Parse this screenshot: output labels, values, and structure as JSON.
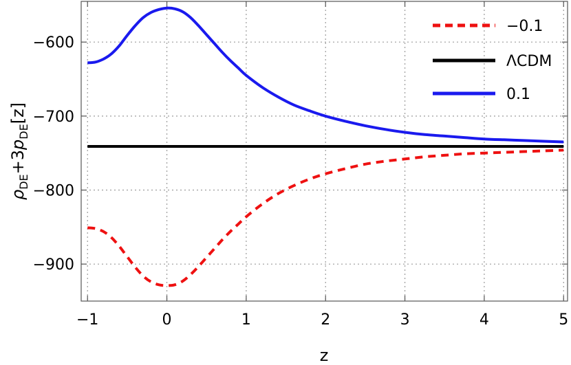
{
  "chart_data": {
    "type": "line",
    "xlabel": "z",
    "ylabel_parts": [
      "ρ",
      "DE",
      "+3",
      "p",
      "DE",
      "[z]"
    ],
    "xlim": [
      -1.08,
      5.05
    ],
    "ylim": [
      -950,
      -545
    ],
    "x_ticks": [
      -1,
      0,
      1,
      2,
      3,
      4,
      5
    ],
    "x_tick_labels": [
      "−1",
      "0",
      "1",
      "2",
      "3",
      "4",
      "5"
    ],
    "y_ticks": [
      -600,
      -700,
      -800,
      -900
    ],
    "y_tick_labels": [
      "−600",
      "−700",
      "−800",
      "−900"
    ],
    "grid": true,
    "legend_position": "top-right",
    "series": [
      {
        "name": "−0.1",
        "color": "#ee1111",
        "style": "dashed",
        "x": [
          -1,
          -0.9,
          -0.8,
          -0.7,
          -0.6,
          -0.5,
          -0.4,
          -0.3,
          -0.2,
          -0.1,
          0,
          0.1,
          0.2,
          0.3,
          0.4,
          0.5,
          0.6,
          0.7,
          0.8,
          0.9,
          1.0,
          1.2,
          1.4,
          1.6,
          1.8,
          2.0,
          2.25,
          2.5,
          2.75,
          3.0,
          3.25,
          3.5,
          3.75,
          4.0,
          4.25,
          4.5,
          4.75,
          5.0
        ],
        "y": [
          -851,
          -852,
          -856,
          -864,
          -876,
          -890,
          -904,
          -916,
          -924,
          -928,
          -929,
          -928,
          -923,
          -914,
          -903,
          -891,
          -879,
          -867,
          -856,
          -846,
          -836,
          -819,
          -805,
          -794,
          -785,
          -778,
          -771,
          -765,
          -761,
          -758,
          -755,
          -753,
          -751,
          -750,
          -749,
          -748,
          -747,
          -746
        ]
      },
      {
        "name": "ΛCDM",
        "color": "#000000",
        "style": "solid",
        "x": [
          -1,
          5
        ],
        "y": [
          -741,
          -741
        ]
      },
      {
        "name": "0.1",
        "color": "#1a1aee",
        "style": "solid",
        "x": [
          -1,
          -0.9,
          -0.8,
          -0.7,
          -0.6,
          -0.5,
          -0.4,
          -0.3,
          -0.2,
          -0.1,
          0,
          0.1,
          0.2,
          0.3,
          0.4,
          0.5,
          0.6,
          0.7,
          0.8,
          0.9,
          1.0,
          1.2,
          1.4,
          1.6,
          1.8,
          2.0,
          2.25,
          2.5,
          2.75,
          3.0,
          3.25,
          3.5,
          3.75,
          4.0,
          4.25,
          4.5,
          4.75,
          5.0
        ],
        "y": [
          -628,
          -627,
          -623,
          -616,
          -605,
          -591,
          -578,
          -567,
          -560,
          -556,
          -554,
          -555,
          -559,
          -567,
          -578,
          -590,
          -602,
          -614,
          -625,
          -635,
          -645,
          -661,
          -674,
          -685,
          -693,
          -700,
          -707,
          -713,
          -718,
          -722,
          -725,
          -727,
          -729,
          -731,
          -732,
          -733,
          -734,
          -735
        ]
      }
    ]
  }
}
